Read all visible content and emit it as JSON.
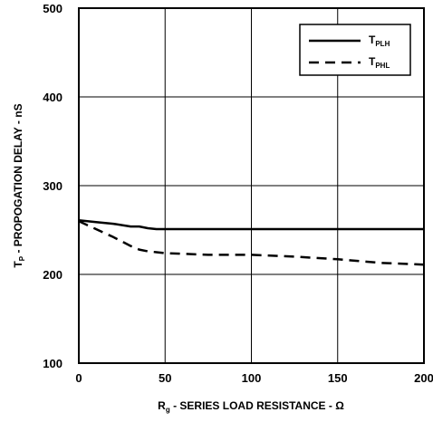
{
  "chart_data": {
    "type": "line",
    "xlabel_sub": "g",
    "xlabel_rest": " - SERIES LOAD RESISTANCE - Ω",
    "xlabel_main": "R",
    "ylabel_main": "T",
    "ylabel_sub": "P",
    "ylabel_rest": " - PROPOGATION DELAY - nS",
    "xlim": [
      0,
      200
    ],
    "ylim": [
      100,
      500
    ],
    "x_ticks": [
      "0",
      "50",
      "100",
      "150",
      "200"
    ],
    "y_ticks": [
      "100",
      "200",
      "300",
      "400",
      "500"
    ],
    "grid": true,
    "legend_position": "top-right",
    "series": [
      {
        "name": "T",
        "name_sub": "PLH",
        "style": "solid",
        "x": [
          0,
          10,
          20,
          30,
          35,
          40,
          45,
          50,
          100,
          150,
          200
        ],
        "y": [
          261,
          259,
          257,
          254,
          254,
          252,
          251,
          251,
          251,
          251,
          251
        ]
      },
      {
        "name": "T",
        "name_sub": "PHL",
        "style": "dashed",
        "x": [
          0,
          10,
          20,
          30,
          35,
          40,
          45,
          50,
          75,
          100,
          125,
          150,
          175,
          200
        ],
        "y": [
          260,
          251,
          242,
          232,
          228,
          226,
          225,
          224,
          222,
          222,
          220,
          217,
          213,
          211
        ]
      }
    ]
  }
}
